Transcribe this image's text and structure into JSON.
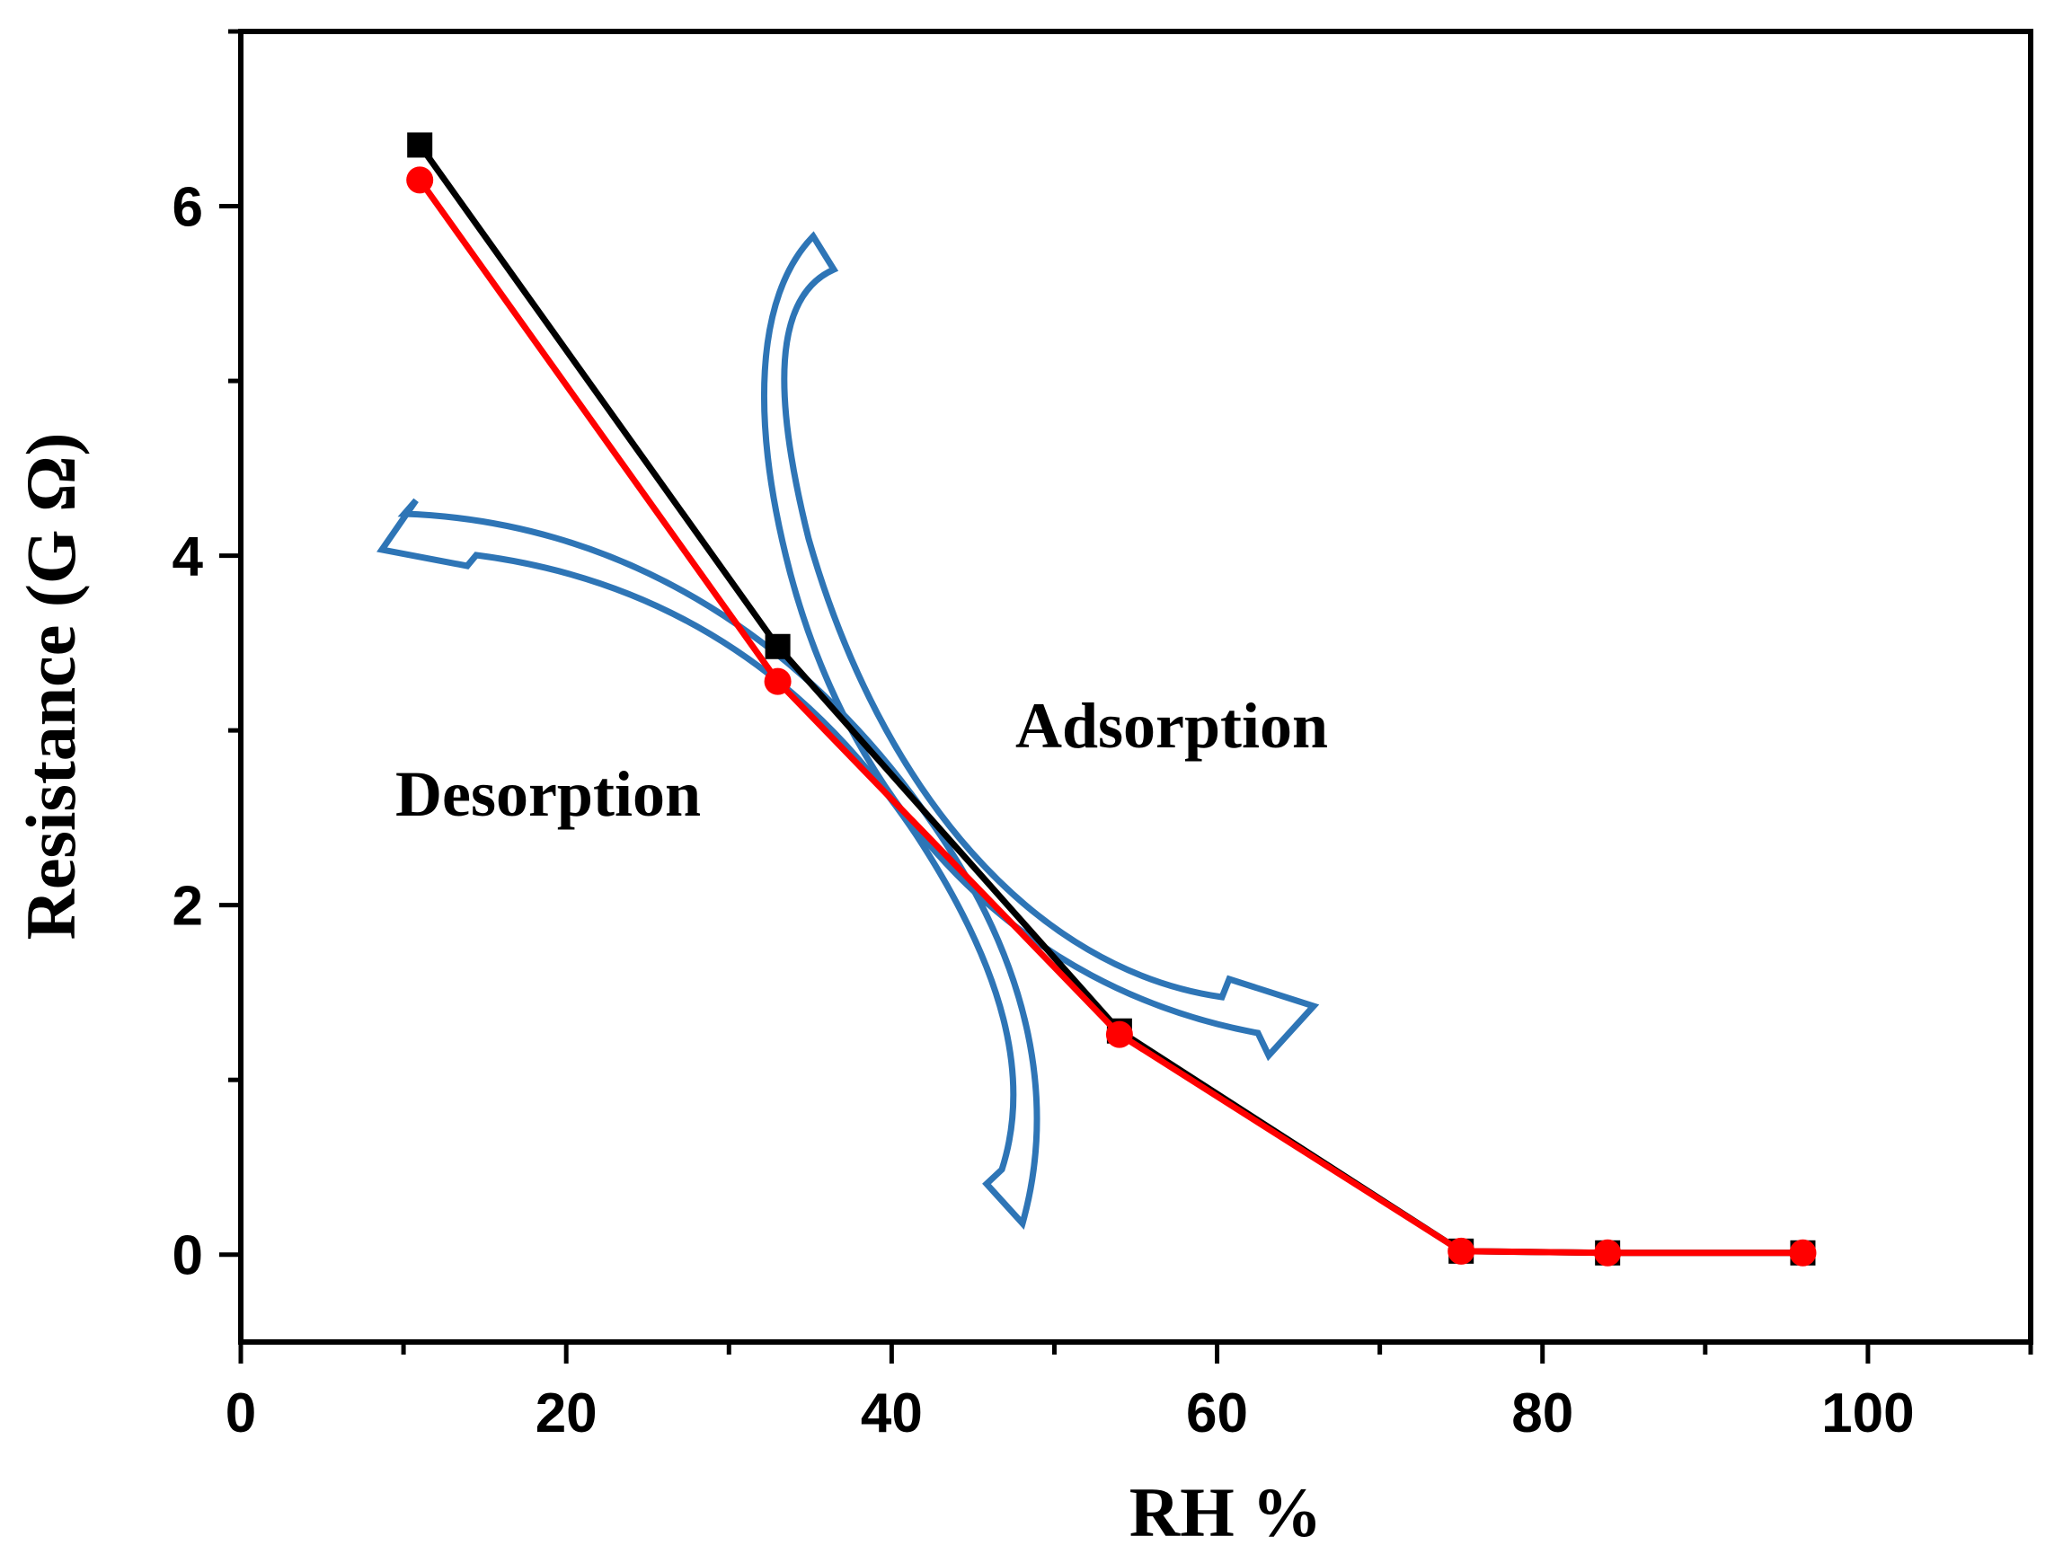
{
  "chart_data": {
    "type": "line",
    "title": "",
    "xlabel": "RH %",
    "ylabel": "Resistance (G Ω)",
    "xlim": [
      0,
      110
    ],
    "ylim": [
      -0.5,
      7
    ],
    "xticks": [
      0,
      20,
      40,
      60,
      80,
      100
    ],
    "xtick_labels": [
      "0",
      "20",
      "40",
      "60",
      "80",
      "100"
    ],
    "yticks": [
      0,
      2,
      4,
      6
    ],
    "ytick_labels": [
      "0",
      "2",
      "4",
      "6"
    ],
    "grid": false,
    "legend": "none",
    "series": [
      {
        "name": "Adsorption",
        "color": "#000000",
        "marker": "square",
        "x": [
          11,
          33,
          54,
          75,
          84,
          96
        ],
        "y": [
          6.35,
          3.48,
          1.28,
          0.02,
          0.01,
          0.01
        ]
      },
      {
        "name": "Desorption",
        "color": "#ff0000",
        "marker": "circle",
        "x": [
          11,
          33,
          54,
          75,
          84,
          96
        ],
        "y": [
          6.15,
          3.28,
          1.26,
          0.02,
          0.01,
          0.01
        ]
      }
    ],
    "annotations": [
      {
        "text": "Adsorption",
        "arrow_color": "#2e75b6"
      },
      {
        "text": "Desorption",
        "arrow_color": "#2e75b6"
      }
    ]
  }
}
